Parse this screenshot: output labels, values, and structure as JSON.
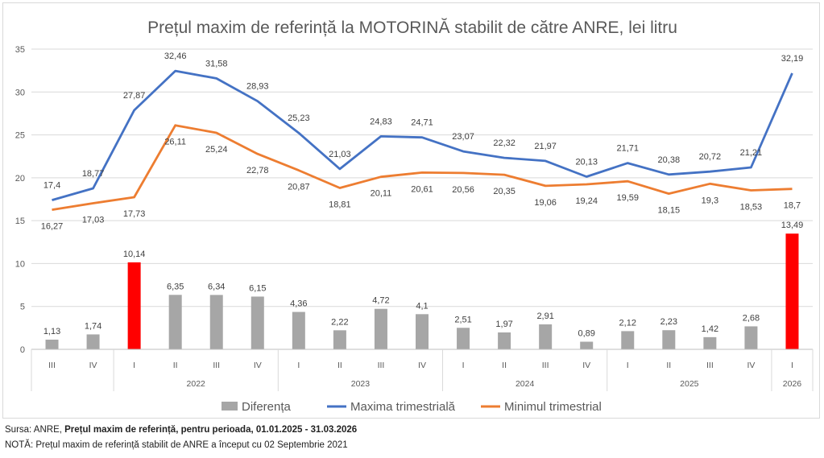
{
  "chart_data": {
    "type": "bar+line",
    "title": "Prețul maxim de referință la MOTORINĂ stabilit de către ANRE, lei litru",
    "ylim": [
      0,
      35
    ],
    "yticks": [
      0,
      5,
      10,
      15,
      20,
      25,
      30,
      35
    ],
    "grid": true,
    "legend_position": "bottom",
    "quarters": [
      "III",
      "IV",
      "I",
      "II",
      "III",
      "IV",
      "I",
      "II",
      "III",
      "IV",
      "I",
      "II",
      "III",
      "IV",
      "I",
      "II",
      "III",
      "IV",
      "I"
    ],
    "year_groups": [
      {
        "label": "",
        "count": 2
      },
      {
        "label": "2022",
        "count": 4
      },
      {
        "label": "2023",
        "count": 4
      },
      {
        "label": "2024",
        "count": 4
      },
      {
        "label": "2025",
        "count": 4
      },
      {
        "label": "2026",
        "count": 1
      }
    ],
    "series": [
      {
        "name": "Diferența",
        "kind": "bar",
        "color": "#a6a6a6",
        "highlight_color": "#ff0000",
        "highlight": [
          2,
          18
        ],
        "values": [
          1.13,
          1.74,
          10.14,
          6.35,
          6.34,
          6.15,
          4.36,
          2.22,
          4.72,
          4.1,
          2.51,
          1.97,
          2.91,
          0.89,
          2.12,
          2.23,
          1.42,
          2.68,
          13.49
        ],
        "labels": [
          "1,13",
          "1,74",
          "10,14",
          "6,35",
          "6,34",
          "6,15",
          "4,36",
          "2,22",
          "4,72",
          "4,1",
          "2,51",
          "1,97",
          "2,91",
          "0,89",
          "2,12",
          "2,23",
          "1,42",
          "2,68",
          "13,49"
        ]
      },
      {
        "name": "Maxima trimestrială",
        "kind": "line",
        "color": "#4472c4",
        "values": [
          17.4,
          18.77,
          27.87,
          32.46,
          31.58,
          28.93,
          25.23,
          21.03,
          24.83,
          24.71,
          23.07,
          22.32,
          21.97,
          20.13,
          21.71,
          20.38,
          20.72,
          21.21,
          32.19
        ],
        "labels": [
          "17,4",
          "18,77",
          "27,87",
          "32,46",
          "31,58",
          "28,93",
          "25,23",
          "21,03",
          "24,83",
          "24,71",
          "23,07",
          "22,32",
          "21,97",
          "20,13",
          "21,71",
          "20,38",
          "20,72",
          "21,21",
          "32,19"
        ]
      },
      {
        "name": "Minimul trimestrial",
        "kind": "line",
        "color": "#ed7d31",
        "values": [
          16.27,
          17.03,
          17.73,
          26.11,
          25.24,
          22.78,
          20.87,
          18.81,
          20.11,
          20.61,
          20.56,
          20.35,
          19.06,
          19.24,
          19.59,
          18.15,
          19.3,
          18.53,
          18.7
        ],
        "labels": [
          "16,27",
          "17,03",
          "17,73",
          "26,11",
          "25,24",
          "22,78",
          "20,87",
          "18,81",
          "20,11",
          "20,61",
          "20,56",
          "20,35",
          "19,06",
          "19,24",
          "19,59",
          "18,15",
          "19,3",
          "18,53",
          "18,7"
        ]
      }
    ]
  },
  "footer": {
    "source_prefix": "Sursa: ANRE, ",
    "source_bold": "Prețul maxim de referință, pentru perioada, 01.01.2025 - 31.03.2026",
    "note": "NOTĂ:  Prețul maxim de referință stabilit de ANRE a început cu 02 Septembrie 2021"
  }
}
